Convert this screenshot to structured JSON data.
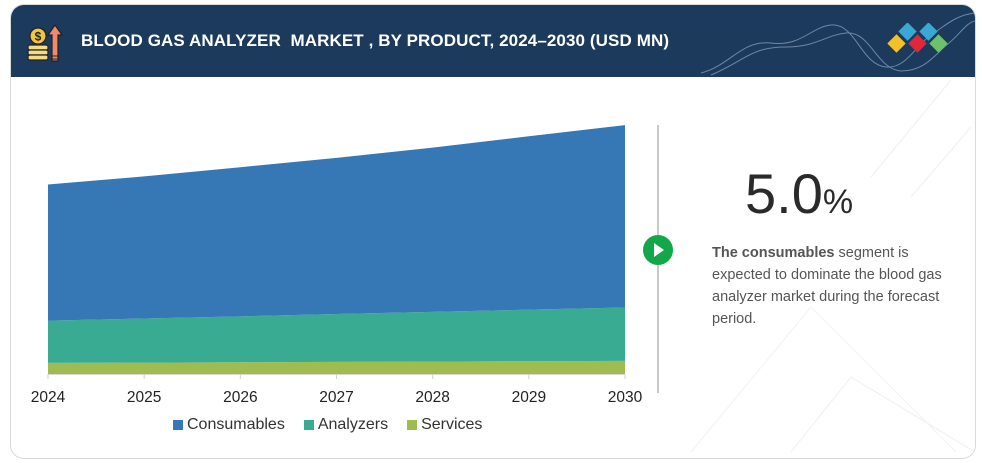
{
  "header": {
    "title": "BLOOD GAS ANALYZER  MARKET , BY PRODUCT, 2024–2030 (USD MN)",
    "icon": "coins-growth-icon",
    "logo": "diamond-logo-icon",
    "background_color": "#1b3a5c"
  },
  "highlight": {
    "cagr_value": "5.0",
    "cagr_unit": "%",
    "description_bold": "The consumables",
    "description_rest": " segment is expected to dominate the blood gas analyzer market during the forecast period.",
    "marker_icon": "play-arrow-icon",
    "marker_color": "#12a84a"
  },
  "chart_data": {
    "type": "area",
    "stacked": true,
    "title": "BLOOD GAS ANALYZER  MARKET , BY PRODUCT, 2024–2030 (USD MN)",
    "xlabel": "",
    "ylabel": "USD MN (relative, axis not labeled)",
    "categories": [
      "2024",
      "2025",
      "2026",
      "2027",
      "2028",
      "2029",
      "2030"
    ],
    "series": [
      {
        "name": "Services",
        "color": "#a0bb50",
        "values": [
          11,
          11.3,
          11.6,
          12,
          12.3,
          12.7,
          13
        ]
      },
      {
        "name": "Analyzers",
        "color": "#3aab93",
        "values": [
          42,
          43.8,
          45.6,
          47.5,
          49.4,
          51.2,
          53
        ]
      },
      {
        "name": "Consumables",
        "color": "#3677b5",
        "values": [
          135,
          141,
          148,
          155,
          163,
          172,
          181
        ]
      }
    ],
    "ylim": [
      0,
      260
    ],
    "grid": false,
    "legend_position": "bottom-center",
    "legend": [
      "Consumables",
      "Analyzers",
      "Services"
    ]
  }
}
